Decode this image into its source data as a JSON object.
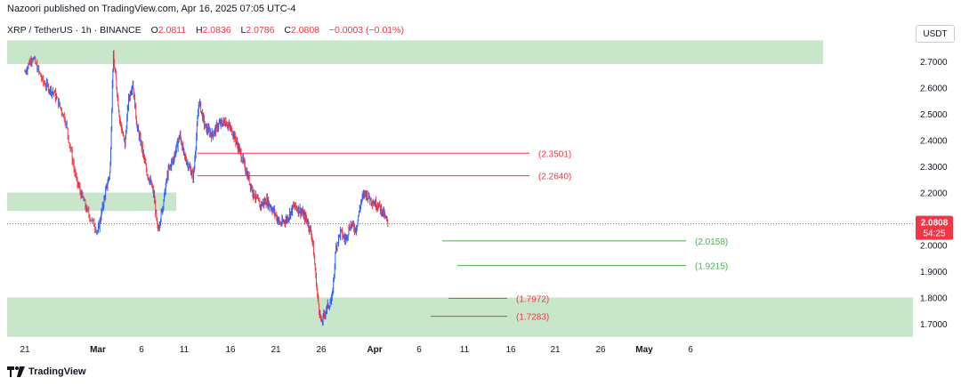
{
  "header": {
    "publisher_line": "Nazoori published on TradingView.com, Apr 16, 2025 07:05 UTC-4"
  },
  "legend": {
    "symbol": "XRP / TetherUS · 1h · BINANCE",
    "open_label": "O",
    "open_value": "2.0811",
    "high_label": "H",
    "high_value": "2.0836",
    "low_label": "L",
    "low_value": "2.0786",
    "close_label": "C",
    "close_value": "2.0808",
    "change_value": "−0.0003 (−0.01%)"
  },
  "currency_button": "USDT",
  "price_tag": {
    "price": "2.0808",
    "countdown": "54:25"
  },
  "footer": {
    "logo_text": "TradingView",
    "logo_icon": "tradingview-logo-icon"
  },
  "colors": {
    "up": "#2962ff",
    "down": "#f23645",
    "zone": "#c8e6c9",
    "support_line": "#4caf50",
    "resistance_line": "#f23645",
    "axis_text": "#131722"
  },
  "chart_data": {
    "type": "candlestick",
    "symbol": "XRP / TetherUS",
    "interval": "1h",
    "exchange": "BINANCE",
    "ylim": [
      1.64,
      2.81
    ],
    "y_ticks": [
      "2.7000",
      "2.6000",
      "2.5000",
      "2.4000",
      "2.3000",
      "2.2000",
      "2.1000",
      "2.0000",
      "1.9000",
      "1.8000",
      "1.7000"
    ],
    "x_ticks": [
      "21",
      "Mar",
      "6",
      "11",
      "16",
      "21",
      "26",
      "Apr",
      "6",
      "11",
      "16",
      "21",
      "26",
      "May",
      "6"
    ],
    "x_tick_index": [
      0,
      1,
      2,
      3,
      4,
      5,
      6,
      7,
      8,
      9,
      10,
      11,
      12,
      13,
      14
    ],
    "price_path": [
      [
        0,
        2.66
      ],
      [
        0.1,
        2.72
      ],
      [
        0.25,
        2.62
      ],
      [
        0.4,
        2.58
      ],
      [
        0.55,
        2.48
      ],
      [
        0.7,
        2.25
      ],
      [
        0.85,
        2.13
      ],
      [
        1.0,
        2.05
      ],
      [
        1.15,
        2.18
      ],
      [
        1.28,
        2.28
      ],
      [
        1.35,
        2.72
      ],
      [
        1.42,
        2.62
      ],
      [
        1.5,
        2.48
      ],
      [
        1.62,
        2.38
      ],
      [
        1.7,
        2.55
      ],
      [
        1.8,
        2.62
      ],
      [
        1.9,
        2.45
      ],
      [
        2.0,
        2.38
      ],
      [
        2.12,
        2.28
      ],
      [
        2.25,
        2.22
      ],
      [
        2.3,
        2.18
      ],
      [
        2.38,
        2.05
      ],
      [
        2.5,
        2.15
      ],
      [
        2.62,
        2.28
      ],
      [
        2.75,
        2.33
      ],
      [
        2.9,
        2.42
      ],
      [
        3.0,
        2.34
      ],
      [
        3.1,
        2.3
      ],
      [
        3.2,
        2.26
      ],
      [
        3.32,
        2.55
      ],
      [
        3.45,
        2.45
      ],
      [
        3.6,
        2.42
      ],
      [
        3.75,
        2.46
      ],
      [
        3.9,
        2.47
      ],
      [
        4.05,
        2.43
      ],
      [
        4.2,
        2.36
      ],
      [
        4.35,
        2.28
      ],
      [
        4.5,
        2.2
      ],
      [
        4.65,
        2.15
      ],
      [
        4.8,
        2.17
      ],
      [
        4.95,
        2.13
      ],
      [
        5.1,
        2.08
      ],
      [
        5.25,
        2.1
      ],
      [
        5.4,
        2.15
      ],
      [
        5.55,
        2.13
      ],
      [
        5.7,
        2.09
      ],
      [
        5.8,
        2.03
      ],
      [
        5.86,
        1.92
      ],
      [
        5.92,
        1.8
      ],
      [
        6.0,
        1.7
      ],
      [
        6.1,
        1.76
      ],
      [
        6.2,
        1.79
      ],
      [
        6.28,
        2.0
      ],
      [
        6.36,
        2.05
      ],
      [
        6.45,
        2.02
      ],
      [
        6.55,
        2.08
      ],
      [
        6.65,
        2.06
      ],
      [
        6.75,
        2.17
      ],
      [
        6.82,
        2.2
      ],
      [
        6.9,
        2.18
      ],
      [
        7.0,
        2.16
      ],
      [
        7.1,
        2.15
      ],
      [
        7.2,
        2.12
      ],
      [
        7.3,
        2.08
      ]
    ],
    "zones": [
      {
        "low": 2.69,
        "high": 2.78,
        "x_end": "26"
      },
      {
        "low": 2.13,
        "high": 2.2,
        "x_end": "11"
      },
      {
        "low": 1.65,
        "high": 1.8,
        "x_end": "right-edge"
      }
    ],
    "levels": [
      {
        "label": "(2.3501)",
        "price": 2.35,
        "role": "resistance"
      },
      {
        "label": "(2.2640)",
        "price": 2.264,
        "role": "resistance"
      },
      {
        "label": "(2.0158)",
        "price": 2.0158,
        "role": "support"
      },
      {
        "label": "(1.9215)",
        "price": 1.9215,
        "role": "support"
      },
      {
        "label": "(1.7972)",
        "price": 1.7972,
        "role": "resistance"
      },
      {
        "label": "(1.7283)",
        "price": 1.7283,
        "role": "resistance"
      }
    ],
    "last_price": 2.0808
  }
}
